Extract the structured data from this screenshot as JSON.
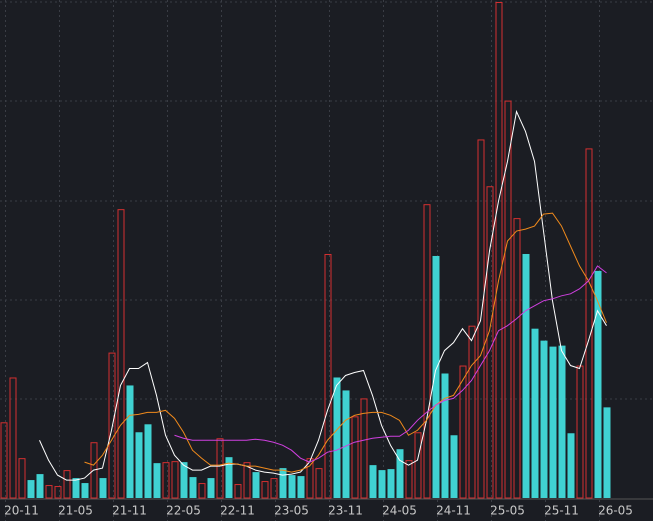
{
  "chart_data": {
    "type": "bar",
    "categories": [
      null,
      null,
      "20-11",
      null,
      null,
      null,
      null,
      null,
      "21-05",
      null,
      null,
      null,
      null,
      null,
      "21-11",
      null,
      null,
      null,
      null,
      null,
      "22-05",
      null,
      null,
      null,
      null,
      null,
      "22-11",
      null,
      null,
      null,
      null,
      null,
      "23-05",
      null,
      null,
      null,
      null,
      null,
      "23-11",
      null,
      null,
      null,
      null,
      null,
      "24-05",
      null,
      null,
      null,
      null,
      null,
      "24-11",
      null,
      null,
      null,
      null,
      null,
      "25-05",
      null,
      null,
      null,
      null,
      null,
      "25-11",
      null,
      null,
      null,
      null,
      null,
      "26-05"
    ],
    "values": [
      76,
      121,
      40,
      18,
      24,
      13,
      12,
      28,
      20,
      15,
      56,
      20,
      146,
      290,
      113,
      66,
      74,
      35,
      36,
      37,
      36,
      21,
      15,
      20,
      60,
      41,
      14,
      36,
      26,
      17,
      20,
      30,
      23,
      22,
      40,
      30,
      245,
      121,
      108,
      82,
      100,
      33,
      28,
      29,
      49,
      38,
      66,
      295,
      243,
      125,
      63,
      133,
      173,
      360,
      313,
      498,
      399,
      281,
      245,
      170,
      158,
      152,
      153,
      65,
      133,
      351,
      228,
      91,
      null
    ],
    "colors": [
      "#d43030",
      "#d43030",
      "#d43030",
      "#40d2d2",
      "#40d2d2",
      "#d43030",
      "#d43030",
      "#d43030",
      "#40d2d2",
      "#40d2d2",
      "#d43030",
      "#40d2d2",
      "#d43030",
      "#d43030",
      "#40d2d2",
      "#40d2d2",
      "#40d2d2",
      "#40d2d2",
      "#d43030",
      "#d43030",
      "#40d2d2",
      "#40d2d2",
      "#d43030",
      "#40d2d2",
      "#d43030",
      "#40d2d2",
      "#d43030",
      "#d43030",
      "#40d2d2",
      "#d43030",
      "#d43030",
      "#40d2d2",
      "#40d2d2",
      "#40d2d2",
      "#d43030",
      "#d43030",
      "#d43030",
      "#40d2d2",
      "#40d2d2",
      "#d43030",
      "#d43030",
      "#40d2d2",
      "#40d2d2",
      "#40d2d2",
      "#40d2d2",
      "#d43030",
      "#d43030",
      "#d43030",
      "#40d2d2",
      "#40d2d2",
      "#40d2d2",
      "#d43030",
      "#d43030",
      "#d43030",
      "#d43030",
      "#d43030",
      "#d43030",
      "#d43030",
      "#40d2d2",
      "#40d2d2",
      "#40d2d2",
      "#40d2d2",
      "#40d2d2",
      "#40d2d2",
      "#d43030",
      "#d43030",
      "#40d2d2",
      "#40d2d2",
      null
    ],
    "lines": [
      {
        "color": "#ffffff",
        "values": [
          null,
          null,
          null,
          null,
          58,
          38,
          23,
          18,
          18,
          20,
          28,
          30,
          68,
          113,
          130,
          130,
          136,
          103,
          63,
          43,
          33,
          28,
          28,
          32,
          32,
          34,
          34,
          32,
          28,
          26,
          25,
          23,
          24,
          26,
          36,
          58,
          88,
          113,
          123,
          126,
          128,
          103,
          73,
          53,
          38,
          33,
          38,
          78,
          128,
          148,
          156,
          170,
          158,
          178,
          248,
          298,
          338,
          388,
          368,
          338,
          268,
          198,
          148,
          133,
          130,
          158,
          188,
          173,
          null
        ]
      },
      {
        "color": "#f08a1c",
        "values": [
          null,
          null,
          null,
          null,
          null,
          null,
          null,
          null,
          null,
          36,
          33,
          43,
          58,
          73,
          83,
          84,
          86,
          86,
          88,
          80,
          66,
          48,
          40,
          33,
          33,
          35,
          34,
          32,
          32,
          30,
          28,
          28,
          26,
          28,
          32,
          43,
          58,
          68,
          78,
          83,
          85,
          86,
          86,
          83,
          78,
          63,
          68,
          78,
          93,
          100,
          103,
          118,
          133,
          143,
          168,
          218,
          258,
          268,
          270,
          273,
          285,
          286,
          273,
          253,
          233,
          218,
          198,
          176,
          null
        ]
      },
      {
        "color": "#d040e0",
        "values": [
          null,
          null,
          null,
          null,
          null,
          null,
          null,
          null,
          null,
          null,
          null,
          null,
          null,
          null,
          null,
          null,
          null,
          null,
          null,
          63,
          60,
          58,
          58,
          58,
          58,
          58,
          58,
          58,
          59,
          58,
          56,
          53,
          48,
          40,
          36,
          40,
          46,
          48,
          52,
          56,
          58,
          60,
          61,
          62,
          62,
          68,
          78,
          86,
          93,
          98,
          100,
          108,
          118,
          133,
          148,
          168,
          173,
          180,
          188,
          193,
          198,
          200,
          203,
          205,
          210,
          218,
          233,
          226,
          null
        ]
      }
    ],
    "ylim": [
      0,
      500
    ]
  }
}
